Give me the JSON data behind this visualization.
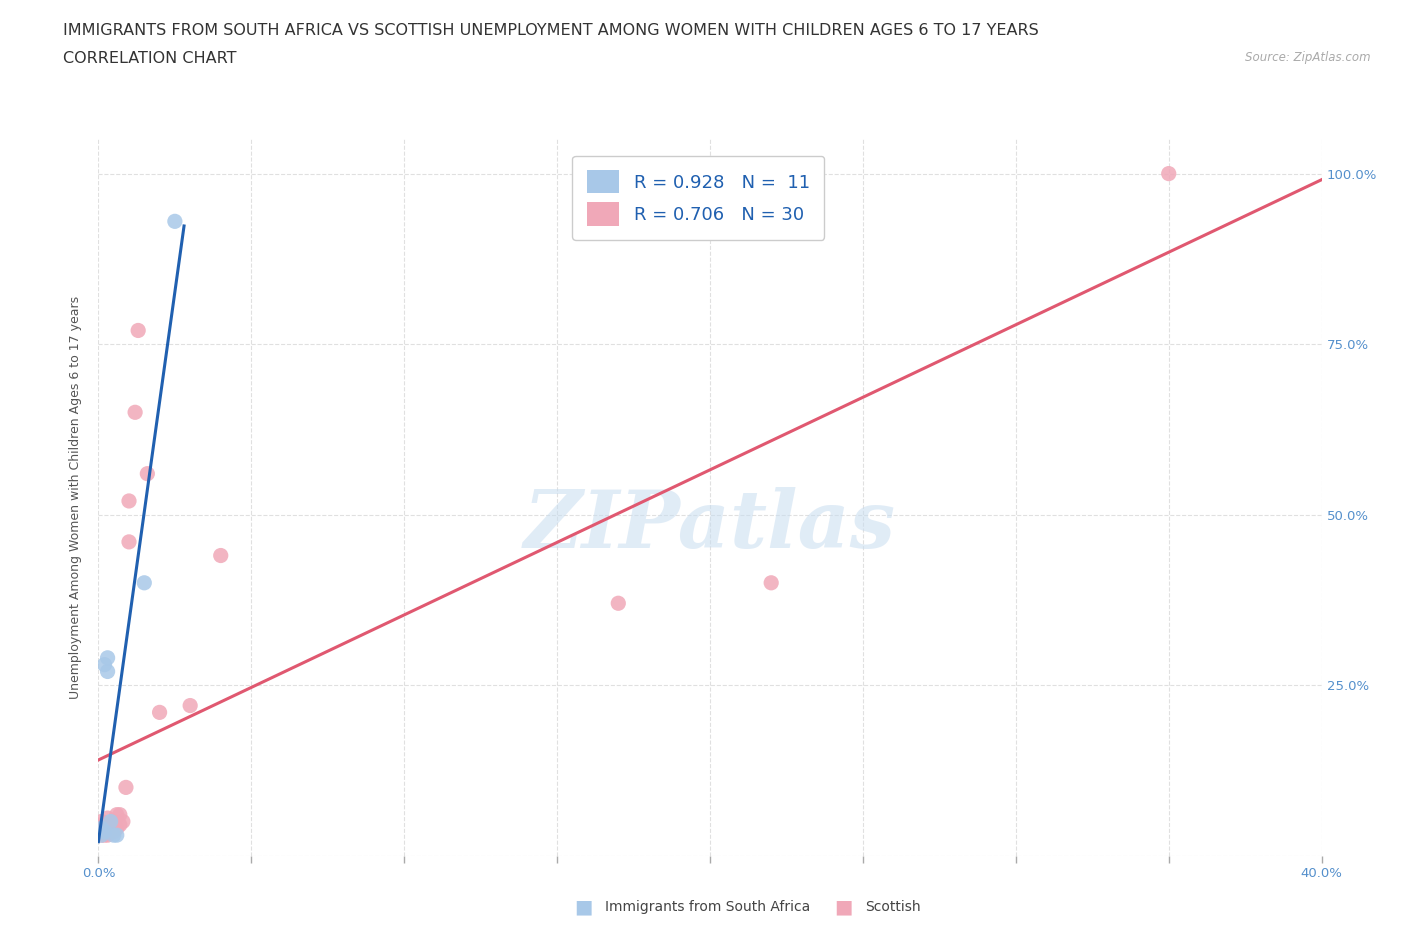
{
  "title": "IMMIGRANTS FROM SOUTH AFRICA VS SCOTTISH UNEMPLOYMENT AMONG WOMEN WITH CHILDREN AGES 6 TO 17 YEARS",
  "subtitle": "CORRELATION CHART",
  "source": "Source: ZipAtlas.com",
  "ylabel": "Unemployment Among Women with Children Ages 6 to 17 years",
  "xlim": [
    0.0,
    0.4
  ],
  "ylim": [
    0.0,
    1.05
  ],
  "xticks": [
    0.0,
    0.05,
    0.1,
    0.15,
    0.2,
    0.25,
    0.3,
    0.35,
    0.4
  ],
  "yticks": [
    0.0,
    0.25,
    0.5,
    0.75,
    1.0
  ],
  "ytick_labels_right": [
    "",
    "25.0%",
    "50.0%",
    "75.0%",
    "100.0%"
  ],
  "blue_color": "#a8c8e8",
  "pink_color": "#f0a8b8",
  "blue_line_color": "#2060b0",
  "pink_line_color": "#e05870",
  "r_blue": 0.928,
  "n_blue": 11,
  "r_pink": 0.706,
  "n_pink": 30,
  "legend_label_blue": "Immigrants from South Africa",
  "legend_label_pink": "Scottish",
  "watermark": "ZIPatlas",
  "blue_scatter_x": [
    0.001,
    0.001,
    0.002,
    0.002,
    0.003,
    0.003,
    0.004,
    0.005,
    0.006,
    0.015,
    0.025
  ],
  "blue_scatter_y": [
    0.03,
    0.04,
    0.035,
    0.28,
    0.27,
    0.29,
    0.05,
    0.03,
    0.03,
    0.4,
    0.93
  ],
  "pink_scatter_x": [
    0.001,
    0.001,
    0.001,
    0.001,
    0.001,
    0.002,
    0.002,
    0.002,
    0.003,
    0.003,
    0.003,
    0.004,
    0.004,
    0.005,
    0.005,
    0.006,
    0.006,
    0.007,
    0.007,
    0.008,
    0.009,
    0.01,
    0.01,
    0.012,
    0.013,
    0.016,
    0.02,
    0.03,
    0.04,
    0.35
  ],
  "pink_scatter_y": [
    0.03,
    0.035,
    0.04,
    0.045,
    0.05,
    0.03,
    0.035,
    0.04,
    0.03,
    0.04,
    0.055,
    0.04,
    0.045,
    0.035,
    0.05,
    0.04,
    0.06,
    0.045,
    0.06,
    0.05,
    0.1,
    0.52,
    0.46,
    0.65,
    0.77,
    0.56,
    0.21,
    0.22,
    0.44,
    1.0
  ],
  "pink_lowx_scatter_x": [
    0.17,
    0.22
  ],
  "pink_lowx_scatter_y": [
    0.37,
    0.4
  ],
  "grid_color": "#dddddd",
  "background_color": "#ffffff",
  "title_fontsize": 11.5,
  "subtitle_fontsize": 11.5,
  "axis_fontsize": 9,
  "tick_fontsize": 9.5,
  "legend_fontsize": 13
}
